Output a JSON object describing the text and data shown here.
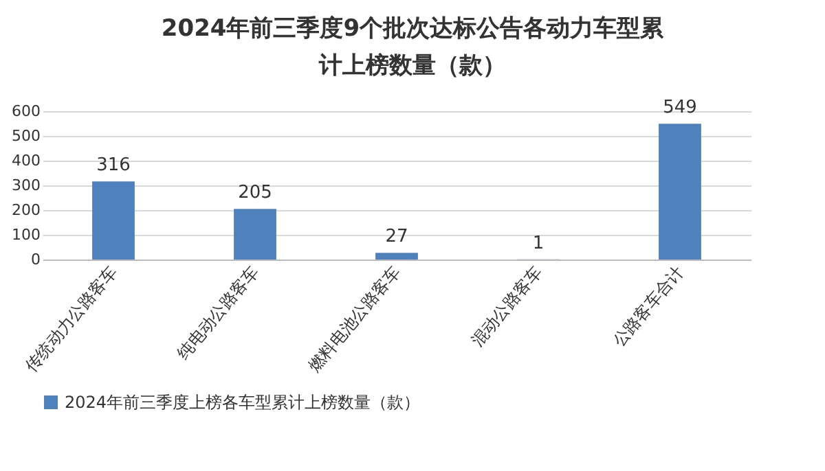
{
  "chart_data": {
    "type": "bar",
    "title": "2024年前三季度9个批次达标公告各动力车型累计上榜数量（款）",
    "categories": [
      "传统动力公路客车",
      "纯电动公路客车",
      "燃料电池公路客车",
      "混动公路客车",
      "公路客车合计"
    ],
    "series": [
      {
        "name": "2024年前三季度上榜各车型累计上榜数量（款）",
        "color": "#4f81bd",
        "values": [
          316,
          205,
          27,
          1,
          549
        ]
      }
    ],
    "ylim": [
      0,
      600
    ],
    "yticks": [
      0,
      100,
      200,
      300,
      400,
      500,
      600
    ],
    "grid": "y",
    "legend": "bottom",
    "data_labels": true
  }
}
